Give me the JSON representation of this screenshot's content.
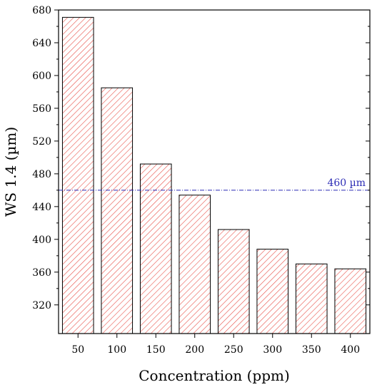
{
  "chart_data": {
    "type": "bar",
    "title": "",
    "xlabel": "Concentration (ppm)",
    "ylabel": "WS 1.4 (µm)",
    "categories": [
      "50",
      "100",
      "150",
      "200",
      "250",
      "300",
      "350",
      "400"
    ],
    "values": [
      671,
      585,
      492,
      454,
      412,
      388,
      370,
      364
    ],
    "ylim": [
      285,
      680
    ],
    "yticks": [
      320,
      360,
      400,
      440,
      480,
      520,
      560,
      600,
      640,
      680
    ],
    "bar_fill": "hatched",
    "bar_color": "#e8524a",
    "reference_line": {
      "value": 460,
      "label": "460 µm",
      "color": "#2b2bb5",
      "style": "dash-dot"
    },
    "grid": false
  }
}
